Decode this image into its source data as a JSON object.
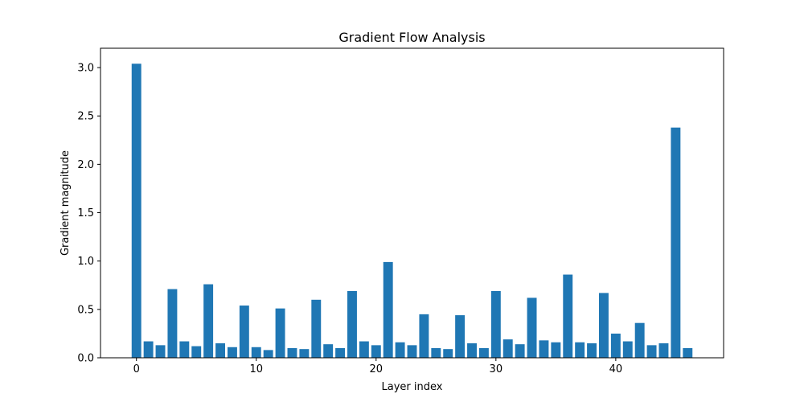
{
  "chart_data": {
    "type": "bar",
    "title": "Gradient Flow Analysis",
    "xlabel": "Layer index",
    "ylabel": "Gradient magnitude",
    "xlim": [
      -3,
      49
    ],
    "ylim": [
      0,
      3.2
    ],
    "xticks": [
      0,
      10,
      20,
      30,
      40
    ],
    "yticks": [
      0.0,
      0.5,
      1.0,
      1.5,
      2.0,
      2.5,
      3.0
    ],
    "ytick_labels": [
      "0.0",
      "0.5",
      "1.0",
      "1.5",
      "2.0",
      "2.5",
      "3.0"
    ],
    "bar_color": "#1f77b4",
    "grid": false,
    "x": [
      0,
      1,
      2,
      3,
      4,
      5,
      6,
      7,
      8,
      9,
      10,
      11,
      12,
      13,
      14,
      15,
      16,
      17,
      18,
      19,
      20,
      21,
      22,
      23,
      24,
      25,
      26,
      27,
      28,
      29,
      30,
      31,
      32,
      33,
      34,
      35,
      36,
      37,
      38,
      39,
      40,
      41,
      42,
      43,
      44,
      45,
      46
    ],
    "values": [
      3.04,
      0.17,
      0.13,
      0.71,
      0.17,
      0.12,
      0.76,
      0.15,
      0.11,
      0.54,
      0.11,
      0.08,
      0.51,
      0.1,
      0.09,
      0.6,
      0.14,
      0.1,
      0.69,
      0.17,
      0.13,
      0.99,
      0.16,
      0.13,
      0.45,
      0.1,
      0.09,
      0.44,
      0.15,
      0.1,
      0.69,
      0.19,
      0.14,
      0.62,
      0.18,
      0.16,
      0.86,
      0.16,
      0.15,
      0.67,
      0.25,
      0.17,
      0.36,
      0.13,
      0.15,
      2.38,
      0.1
    ]
  }
}
